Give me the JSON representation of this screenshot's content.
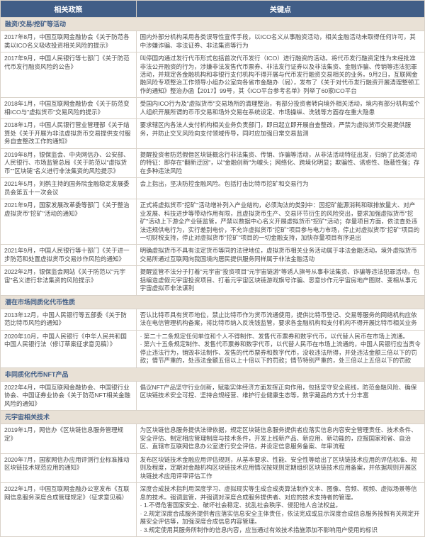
{
  "headers": {
    "policy": "相关政策",
    "key": "关键点"
  },
  "colors": {
    "header_bg": "#415e87",
    "header_fg": "#ffffff",
    "section_bg": "#e9e1d6",
    "section_fg": "#415e87",
    "row_bg": "#ffffff",
    "border": "#d9d2c9",
    "text": "#4a4a4a"
  },
  "sections": [
    {
      "title": "融资/交易/挖矿等活动",
      "rows": [
        {
          "policy": "2017年8月，中国互联网金融协会《关于防范各类以ICO名义吸收投资相关风险的提示》",
          "key": "国内外部分机构采用各类误导性宣传手段，以ICO名义从事融资活动，相关金融活动未取得任何许可，其中涉嫌诈骗、非法证券、非法集资等行为"
        },
        {
          "policy": "2017年9月，中国人民银行等七部门《关于防范代币发行融资风险的公告》",
          "key": "叫停国内通过发行代币形式包括首次代币发行（ICO）进行融资的活动。将代币发行融资定性为未经批准非法公开融资的行为，涉嫌非法发售代币票券、非法发行证券以及非法集资、金融诈骗、传销等违法犯罪活动，并规定各金融机构和非银行支付机构不得开展与代币发行融资交易相关的业务。9月2日，互联网金融风险专项整治工作领导小组办公室向各省市金融办（局），发布了《关于对代币发行融资开展清理整顿工作的通知》整治办函【2017】99号，其《ICO平台参考名单》列举了60家ICO平台"
        },
        {
          "policy": "2018年1月，中国互联网金融协会《关于防范变相ICO与\"虚拟货币\"交易风险的提示》",
          "key": "受国内ICO行为及\"虚拟货币\"交易场所的清理整治，有部分投资者转向境外相关活动，境内有部分机构或个人组织开展所谓的币币交易和场外交易在系统设定、市场操纵、洗钱等方面存在重大隐患"
        },
        {
          "policy": "2018年1月，中国人民银行营业管理部《关于结算处《关于开展为非法虚拟货币交易提供支付服务自查整改工作的通知》",
          "key": "要求辖区内各法人支付机构相关业务负责部门，即日起立即开展自查整改，严禁为虚拟货币交易提供服务，并防止交叉风险向支付领域传导，同时应加强日常交易监测"
        },
        {
          "policy": "2019年8月，银保监会、中央网信办、公安部、人民银行、市场监管总局《关于防范以\"虚拟货币\"\"区块链\"名义进行非法集资的风险提示》",
          "key": "提醒投资者防范假借区块链概念行非法集资、传销、诈骗等活动，从非法活动特征出发，归纳了此类活动的特征：即存在\"翻新迂回\"，以\"金融创新\"为噱头；网络化、跨境化明显；欺骗性、诱惑性、隐蔽性强；存在多种违法风险"
        },
        {
          "policy": "2021年5月，刘鹤主持的国务院金融稳定发展委员会第五十一次会议",
          "key": "会上指出，坚决防控金融风险。包括打击比特币挖矿和交易行为"
        },
        {
          "policy": "2021年9月，国家发展改革委等部门《关于整治虚拟货币\"挖矿\"活动的通知》",
          "key": "正式将虚拟货币\"挖矿\"活动增补列入产业结构，必须淘汰的类别中：因挖矿能源消耗和碳排放量大、对产业发展、科技进步等带动作用有限，且虚拟货币生产、交易环节衍生的风险突出，要求加强虚拟货币\"挖矿\"活动上下游全产业链监管，严禁以数据中心名义开展虚拟货币\"挖矿\"活动；存量项目方面，依法查处违法违规供电行为，实行差别电价，不允许虚拟货币\"挖矿\"项目参与电力市场，停止对虚拟货币\"挖矿\"项目的一切财税支持，停止对虚拟货币\"挖矿\"项目的一切金融支持，加快存量项目有序退出"
        },
        {
          "policy": "2021年9月，中国人民银行等十部门《关于进一步防范和处置虚拟货币交易炒作风险的通知》",
          "key": "明确虚拟货币不具有法定货币等同的法律地位，虚拟货币相关业务活动属于非法金融活动。境外虚拟货币交易所通过互联网向我国境内居民提供服务同样属于非法金融活动"
        },
        {
          "policy": "2022年2月，银保监会网站《关于防范以\"元宇宙\"名义进行非法集资的风险提示》",
          "key": "提醒监管不法分子打着\"元宇宙\"投资项目\"元宇宙链游\"等诱人旗号从事非法集资、诈骗等违法犯罪活动，包括编造虚假元宇宙投资项目、打着元宇宙区块链游戏旗号诈骗、恶意炒作元宇宙房地产图财、变相从事元宇宙虚拟币非法谋利"
        }
      ]
    },
    {
      "title": "潜在市场同质化代币性质",
      "rows": [
        {
          "policy": "2013年12月，中国人民银行等五部委《关于防范比特币风险的通知》",
          "key": "否认比特币具有货币地位，禁止比特币作为货币流通使用，提供比特币登记、交易等服务的网络机构应依法在电信管理机构备案，将比特币纳入反洗钱监管，要求各金融机构和支付机构不得开展比特币相关业务"
        },
        {
          "policy": "2020年10月，中国人民银行《中华人民共和国中国人民银行法（修订草案征求意见稿）》",
          "key": "· 第二十二条规定任何单位和个人不得制作、发售代币票券和数字代币，以代替人民币在市场上流通。\n· 第六十五条规定制作、发售代币票券和数字代币，以代替人民币在市场上流通的，中国人民银行应当责令停止违法行为，销毁非法制作、发售的代币票券和数字代币，没收违法所得，并处违法金额三倍以下的罚款；情节严重的，处违法金额五倍以上十倍以下的罚款；情节特别严重的，处三倍以上五倍以下的罚款"
        }
      ]
    },
    {
      "title": "非同质化代币NFT产品",
      "rows": [
        {
          "policy": "2022年4月，中国互联网金融协会、中国银行业协会、中国证券业协会《关于防范NFT相关金融风险的通知》",
          "key": "倡议NFT产品坚守行业创新，赋能实体经济方面发挥正向作用，包括坚守安全底线，防范金融风险、确保区块链技术安全可控、坚持合规经营、维护行业健康生态等。数字藏品的方式十分丰富"
        }
      ]
    },
    {
      "title": "元宇宙相关技术",
      "rows": [
        {
          "policy": "2019年1月，网信办《区块链信息服务管理规定》",
          "key": "为区块链信息服务提供法律依据，规定区块链信息服务提供者应落实信息内容安全管理责任、技术条件、安全评估、制定相应管理制度与技术条件，开发上线新产品、新应用、新功能的，应报国家和省、自治区、直辖市互联网信息办公室进行安全评估，并设定信息服务备案、年审流程"
        },
        {
          "policy": "2020年7月，国家网信办应用评测行业标准推动区块链技术规范应用的通知》",
          "key": "发布区块链技术金融应用评估规则，从基本要求、性能、安全性等给出了区块链技术应用的评估标准、规则及程度，定期对金融机构区块链技术应用情况按规则定期组织区块链技术应用备案，并依据规则开展区块链技术应用评审评估工作"
        },
        {
          "policy": "2022年1月，中国互联网金融办公室发布《互联网信息服务深度合成管理规定》（征求意见稿）",
          "key": "深度合成技术指利用深度学习、虚拟现实等生成合成类算法制作文本、图像、音频、视频、虚拟场景等信息的技术。强调监管，并强调对深度合成服务提供者、对应的技术支持者的管理。\n· 1.不得危害国家安全、破坏社会稳定、扰乱社会秩序、侵犯他人合法权益。\n· 2.规定深度合成服务提供者应落实信息安全主体责任，依法完成或显示深度合成信息服务按照有关规定开展安全评估等，加强深度合成信息内容管理。\n· 3.规定使用其服务所制作的信息内容，应当通过有效技术措施添加不影响用户使用的标识"
        }
      ]
    }
  ]
}
